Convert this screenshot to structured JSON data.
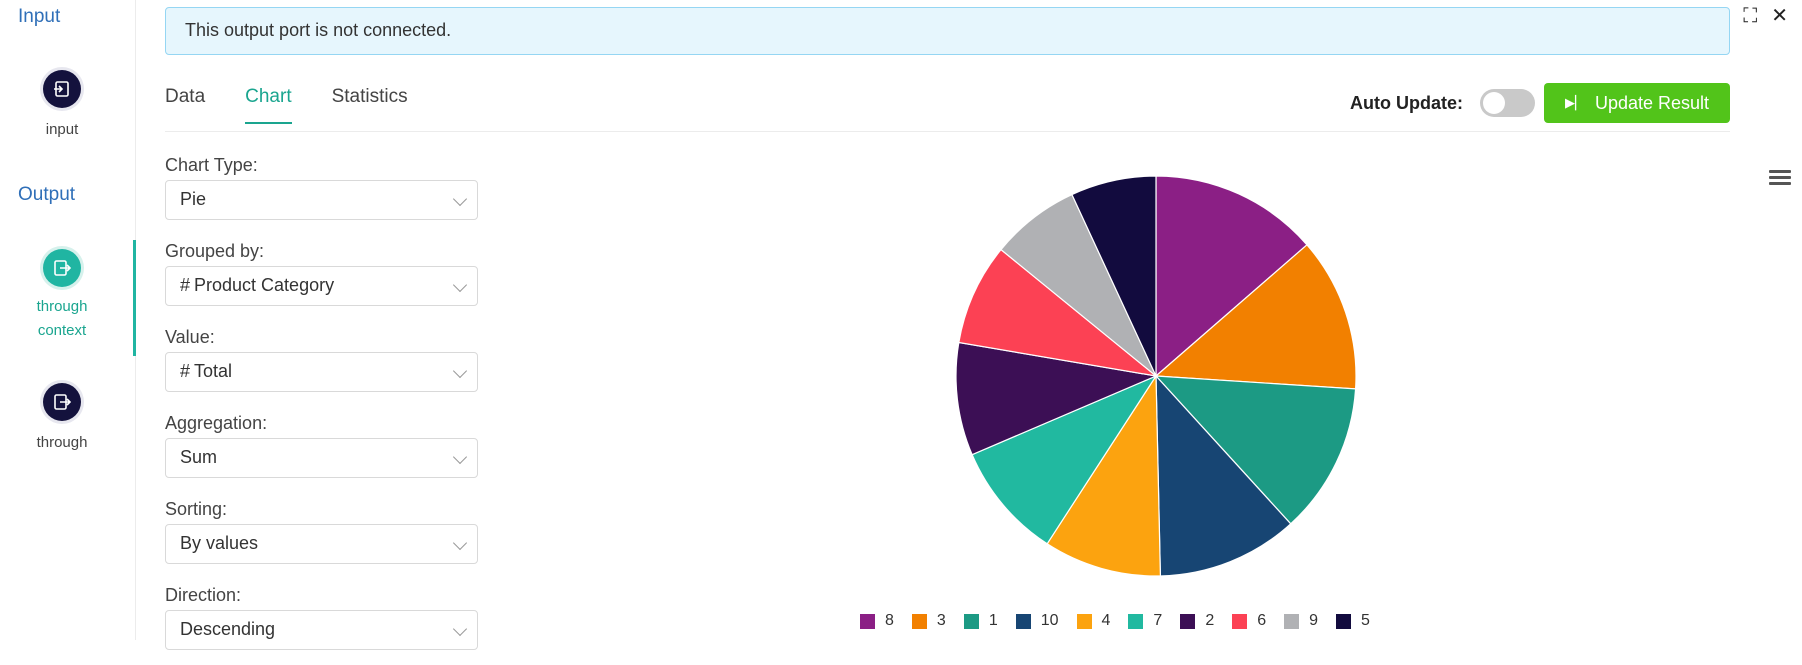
{
  "sidebar": {
    "input_section": "Input",
    "output_section": "Output",
    "nodes": [
      {
        "label": "input"
      },
      {
        "label": "through context"
      },
      {
        "label": "through"
      }
    ]
  },
  "banner": {
    "text": "This output port is not connected."
  },
  "tabs": [
    {
      "label": "Data"
    },
    {
      "label": "Chart"
    },
    {
      "label": "Statistics"
    }
  ],
  "toolbar": {
    "auto_update_label": "Auto Update:",
    "auto_update_on": false,
    "update_button_label": "Update Result"
  },
  "form": {
    "chart_type": {
      "label": "Chart Type:",
      "value": "Pie"
    },
    "grouped_by": {
      "label": "Grouped by:",
      "value": "Product Category",
      "icon": "hash-icon"
    },
    "value": {
      "label": "Value:",
      "value": "Total",
      "icon": "hash-icon"
    },
    "aggregation": {
      "label": "Aggregation:",
      "value": "Sum"
    },
    "sorting": {
      "label": "Sorting:",
      "value": "By values"
    },
    "direction": {
      "label": "Direction:",
      "value": "Descending"
    }
  },
  "chart_data": {
    "type": "pie",
    "categories": [
      "8",
      "3",
      "1",
      "10",
      "4",
      "7",
      "2",
      "6",
      "9",
      "5"
    ],
    "values": [
      13.6,
      12.4,
      12.2,
      11.4,
      9.5,
      9.4,
      9.1,
      8.2,
      7.2,
      6.9
    ],
    "colors": [
      "#8b1f85",
      "#f28000",
      "#1c9a84",
      "#174573",
      "#fca30f",
      "#21b9a0",
      "#3c0f55",
      "#fc4154",
      "#b0b1b4",
      "#120b3e"
    ],
    "legend_position": "bottom"
  }
}
